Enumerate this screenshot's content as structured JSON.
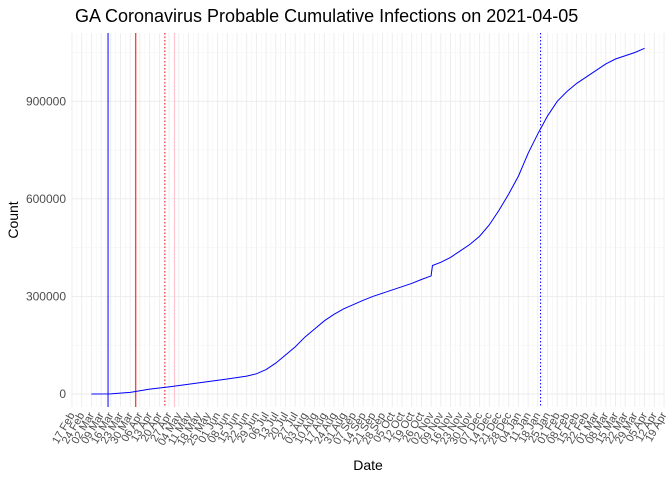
{
  "chart_data": {
    "type": "line",
    "title": "GA Coronavirus Probable Cumulative Infections on 2021-04-05",
    "xlabel": "Date",
    "ylabel": "Count",
    "ylim": [
      -40000,
      1110000
    ],
    "xlim": [
      "2020-02-17",
      "2021-04-19"
    ],
    "y_ticks": [
      0,
      300000,
      600000,
      900000
    ],
    "y_tick_labels": [
      "0",
      "300000",
      "600000",
      "900000"
    ],
    "x_tick_labels": [
      "17 Feb",
      "24 Feb",
      "02 Mar",
      "09 Mar",
      "16 Mar",
      "23 Mar",
      "30 Mar",
      "06 Apr",
      "13 Apr",
      "20 Apr",
      "27 Apr",
      "04 May",
      "11 May",
      "18 May",
      "25 May",
      "01 Jun",
      "08 Jun",
      "15 Jun",
      "22 Jun",
      "29 Jun",
      "06 Jul",
      "13 Jul",
      "20 Jul",
      "27 Jul",
      "03 Aug",
      "10 Aug",
      "17 Aug",
      "24 Aug",
      "31 Aug",
      "07 Sep",
      "14 Sep",
      "21 Sep",
      "28 Sep",
      "05 Oct",
      "12 Oct",
      "19 Oct",
      "26 Oct",
      "02 Nov",
      "09 Nov",
      "16 Nov",
      "23 Nov",
      "30 Nov",
      "07 Dec",
      "14 Dec",
      "21 Dec",
      "28 Dec",
      "04 Jan",
      "11 Jan",
      "18 Jan",
      "25 Jan",
      "01 Feb",
      "08 Feb",
      "15 Feb",
      "22 Feb",
      "01 Mar",
      "08 Mar",
      "15 Mar",
      "22 Mar",
      "29 Mar",
      "05 Apr",
      "12 Apr",
      "19 Apr"
    ],
    "grid": true,
    "legend": "none",
    "series": [
      {
        "color": "#0000ff",
        "points": [
          [
            "2020-03-02",
            0
          ],
          [
            "2020-03-16",
            500
          ],
          [
            "2020-03-30",
            5000
          ],
          [
            "2020-04-13",
            15000
          ],
          [
            "2020-04-27",
            22000
          ],
          [
            "2020-05-11",
            30000
          ],
          [
            "2020-05-25",
            38000
          ],
          [
            "2020-06-08",
            46000
          ],
          [
            "2020-06-22",
            55000
          ],
          [
            "2020-06-29",
            62000
          ],
          [
            "2020-07-06",
            75000
          ],
          [
            "2020-07-13",
            95000
          ],
          [
            "2020-07-20",
            120000
          ],
          [
            "2020-07-27",
            145000
          ],
          [
            "2020-08-03",
            175000
          ],
          [
            "2020-08-10",
            200000
          ],
          [
            "2020-08-17",
            225000
          ],
          [
            "2020-08-24",
            245000
          ],
          [
            "2020-08-31",
            262000
          ],
          [
            "2020-09-07",
            275000
          ],
          [
            "2020-09-14",
            288000
          ],
          [
            "2020-09-21",
            300000
          ],
          [
            "2020-09-28",
            310000
          ],
          [
            "2020-10-05",
            320000
          ],
          [
            "2020-10-12",
            330000
          ],
          [
            "2020-10-19",
            340000
          ],
          [
            "2020-10-26",
            352000
          ],
          [
            "2020-11-02",
            363000
          ],
          [
            "2020-11-03",
            395000
          ],
          [
            "2020-11-09",
            405000
          ],
          [
            "2020-11-16",
            420000
          ],
          [
            "2020-11-23",
            440000
          ],
          [
            "2020-11-30",
            460000
          ],
          [
            "2020-12-07",
            485000
          ],
          [
            "2020-12-14",
            520000
          ],
          [
            "2020-12-21",
            565000
          ],
          [
            "2020-12-28",
            615000
          ],
          [
            "2021-01-04",
            670000
          ],
          [
            "2021-01-11",
            740000
          ],
          [
            "2021-01-18",
            800000
          ],
          [
            "2021-01-25",
            855000
          ],
          [
            "2021-02-01",
            900000
          ],
          [
            "2021-02-08",
            930000
          ],
          [
            "2021-02-15",
            955000
          ],
          [
            "2021-02-22",
            975000
          ],
          [
            "2021-03-01",
            995000
          ],
          [
            "2021-03-08",
            1015000
          ],
          [
            "2021-03-15",
            1030000
          ],
          [
            "2021-03-22",
            1040000
          ],
          [
            "2021-03-29",
            1050000
          ],
          [
            "2021-04-05",
            1063000
          ]
        ]
      }
    ],
    "vertical_lines": [
      {
        "date": "2020-03-14",
        "color": "#0000ff",
        "style": "solid"
      },
      {
        "date": "2020-04-03",
        "color": "#ff0000",
        "style": "solid"
      },
      {
        "date": "2020-04-24",
        "color": "#ff0000",
        "style": "dotted"
      },
      {
        "date": "2020-05-01",
        "color": "#ffc0cb",
        "style": "solid"
      },
      {
        "date": "2021-01-20",
        "color": "#0000ff",
        "style": "dotted"
      }
    ]
  }
}
